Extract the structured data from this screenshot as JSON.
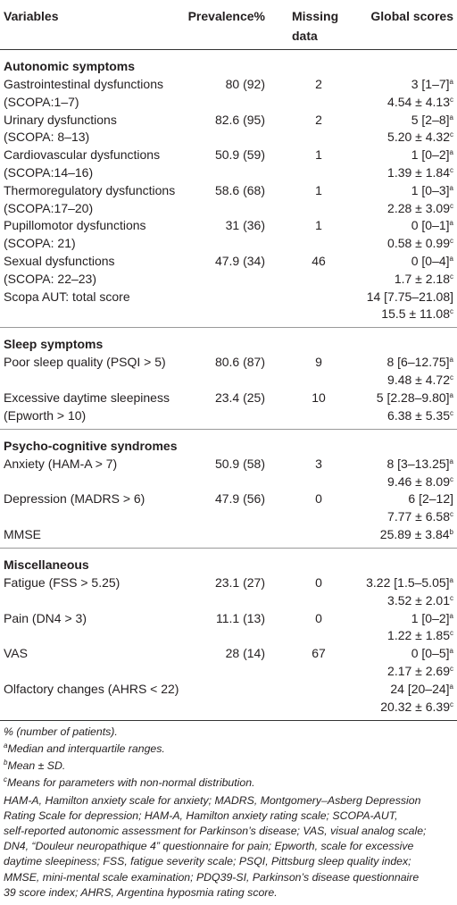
{
  "table": {
    "columns": [
      [
        "Variables"
      ],
      [
        "Prevalence%"
      ],
      [
        "Missing",
        "data"
      ],
      [
        "Global scores"
      ]
    ],
    "sections": [
      {
        "title": "Autonomic symptoms",
        "rows": [
          {
            "variable": [
              "Gastrointestinal dysfunctions",
              "(SCOPA:1–7)"
            ],
            "prevalence": "80 (92)",
            "missing": "2",
            "scores": [
              {
                "text": "3 [1–7]",
                "sup": "a"
              },
              {
                "text": "4.54 ± 4.13",
                "sup": "c"
              }
            ]
          },
          {
            "variable": [
              "Urinary dysfunctions",
              "(SCOPA: 8–13)"
            ],
            "prevalence": "82.6 (95)",
            "missing": "2",
            "scores": [
              {
                "text": "5 [2–8]",
                "sup": "a"
              },
              {
                "text": "5.20 ± 4.32",
                "sup": "c"
              }
            ]
          },
          {
            "variable": [
              "Cardiovascular dysfunctions",
              "(SCOPA:14–16)"
            ],
            "prevalence": "50.9 (59)",
            "missing": "1",
            "scores": [
              {
                "text": "1 [0–2]",
                "sup": "a"
              },
              {
                "text": "1.39 ± 1.84",
                "sup": "c"
              }
            ]
          },
          {
            "variable": [
              "Thermoregulatory dysfunctions",
              "(SCOPA:17–20)"
            ],
            "prevalence": "58.6 (68)",
            "missing": "1",
            "scores": [
              {
                "text": "1 [0–3]",
                "sup": "a"
              },
              {
                "text": "2.28 ± 3.09",
                "sup": "c"
              }
            ]
          },
          {
            "variable": [
              "Pupillomotor dysfunctions",
              "(SCOPA: 21)"
            ],
            "prevalence": "31 (36)",
            "missing": "1",
            "scores": [
              {
                "text": "0 [0–1]",
                "sup": "a"
              },
              {
                "text": "0.58 ± 0.99",
                "sup": "c"
              }
            ]
          },
          {
            "variable": [
              "Sexual dysfunctions",
              "(SCOPA: 22–23)"
            ],
            "prevalence": "47.9 (34)",
            "missing": "46",
            "scores": [
              {
                "text": "0 [0–4]",
                "sup": "a"
              },
              {
                "text": "1.7 ± 2.18",
                "sup": "c"
              }
            ]
          },
          {
            "variable": [
              "Scopa AUT: total score"
            ],
            "scores": [
              {
                "text": "14 [7.75–21.08]"
              },
              {
                "text": "15.5 ± 11.08",
                "sup": "c"
              }
            ]
          }
        ]
      },
      {
        "title": "Sleep symptoms",
        "rows": [
          {
            "variable": [
              "Poor sleep quality (PSQI > 5)"
            ],
            "prevalence": "80.6 (87)",
            "missing": "9",
            "scores": [
              {
                "text": "8 [6–12.75]",
                "sup": "a"
              },
              {
                "text": "9.48 ± 4.72",
                "sup": "c"
              }
            ]
          },
          {
            "variable": [
              "Excessive daytime sleepiness",
              "(Epworth > 10)"
            ],
            "prevalence": "23.4 (25)",
            "missing": "10",
            "scores": [
              {
                "text": "5 [2.28–9.80]",
                "sup": "a"
              },
              {
                "text": "6.38 ± 5.35",
                "sup": "c"
              }
            ]
          }
        ]
      },
      {
        "title": "Psycho-cognitive syndromes",
        "rows": [
          {
            "variable": [
              "Anxiety (HAM-A > 7)"
            ],
            "prevalence": "50.9 (58)",
            "missing": "3",
            "scores": [
              {
                "text": "8 [3–13.25]",
                "sup": "a"
              },
              {
                "text": "9.46 ± 8.09",
                "sup": "c"
              }
            ]
          },
          {
            "variable": [
              "Depression (MADRS > 6)"
            ],
            "prevalence": "47.9 (56)",
            "missing": "0",
            "scores": [
              {
                "text": "6 [2–12]"
              },
              {
                "text": "7.77 ± 6.58",
                "sup": "c"
              }
            ]
          },
          {
            "variable": [
              "MMSE"
            ],
            "scores": [
              {
                "text": "25.89 ± 3.84",
                "sup": "b"
              }
            ]
          }
        ]
      },
      {
        "title": "Miscellaneous",
        "rows": [
          {
            "variable": [
              "Fatigue (FSS > 5.25)"
            ],
            "prevalence": "23.1 (27)",
            "missing": "0",
            "scores": [
              {
                "text": "3.22 [1.5–5.05]",
                "sup": "a"
              },
              {
                "text": "3.52 ± 2.01",
                "sup": "c"
              }
            ]
          },
          {
            "variable": [
              "Pain (DN4 > 3)"
            ],
            "prevalence": "11.1 (13)",
            "missing": "0",
            "scores": [
              {
                "text": "1 [0–2]",
                "sup": "a"
              },
              {
                "text": "1.22 ± 1.85",
                "sup": "c"
              }
            ]
          },
          {
            "variable": [
              "VAS"
            ],
            "prevalence": "28 (14)",
            "missing": "67",
            "scores": [
              {
                "text": "0 [0–5]",
                "sup": "a"
              },
              {
                "text": "2.17 ± 2.69",
                "sup": "c"
              }
            ]
          },
          {
            "variable": [
              "Olfactory changes (AHRS < 22)"
            ],
            "scores": [
              {
                "text": "24 [20–24]",
                "sup": "a"
              },
              {
                "text": "20.32 ± 6.39",
                "sup": "c"
              }
            ]
          }
        ]
      }
    ]
  },
  "notes": {
    "footnotes": [
      {
        "text": "% (number of patients)."
      },
      {
        "sup": "a",
        "text": "Median and interquartile ranges."
      },
      {
        "sup": "b",
        "text": "Mean ± SD."
      },
      {
        "sup": "c",
        "text": "Means for parameters with non-normal distribution."
      }
    ],
    "abbreviations": [
      "HAM-A, Hamilton anxiety scale for anxiety; MADRS, Montgomery–Asberg Depression",
      "Rating Scale for depression; HAM-A, Hamilton anxiety rating scale; SCOPA-AUT,",
      "self-reported autonomic assessment for Parkinson’s disease; VAS, visual analog scale;",
      "DN4, “Douleur neuropathique 4” questionnaire for pain; Epworth, scale for excessive",
      "daytime sleepiness; FSS, fatigue severity scale; PSQI, Pittsburg sleep quality index;",
      "MMSE, mini-mental scale examination; PDQ39-SI, Parkinson’s disease questionnaire",
      "39 score index; AHRS, Argentina hyposmia rating score."
    ]
  }
}
